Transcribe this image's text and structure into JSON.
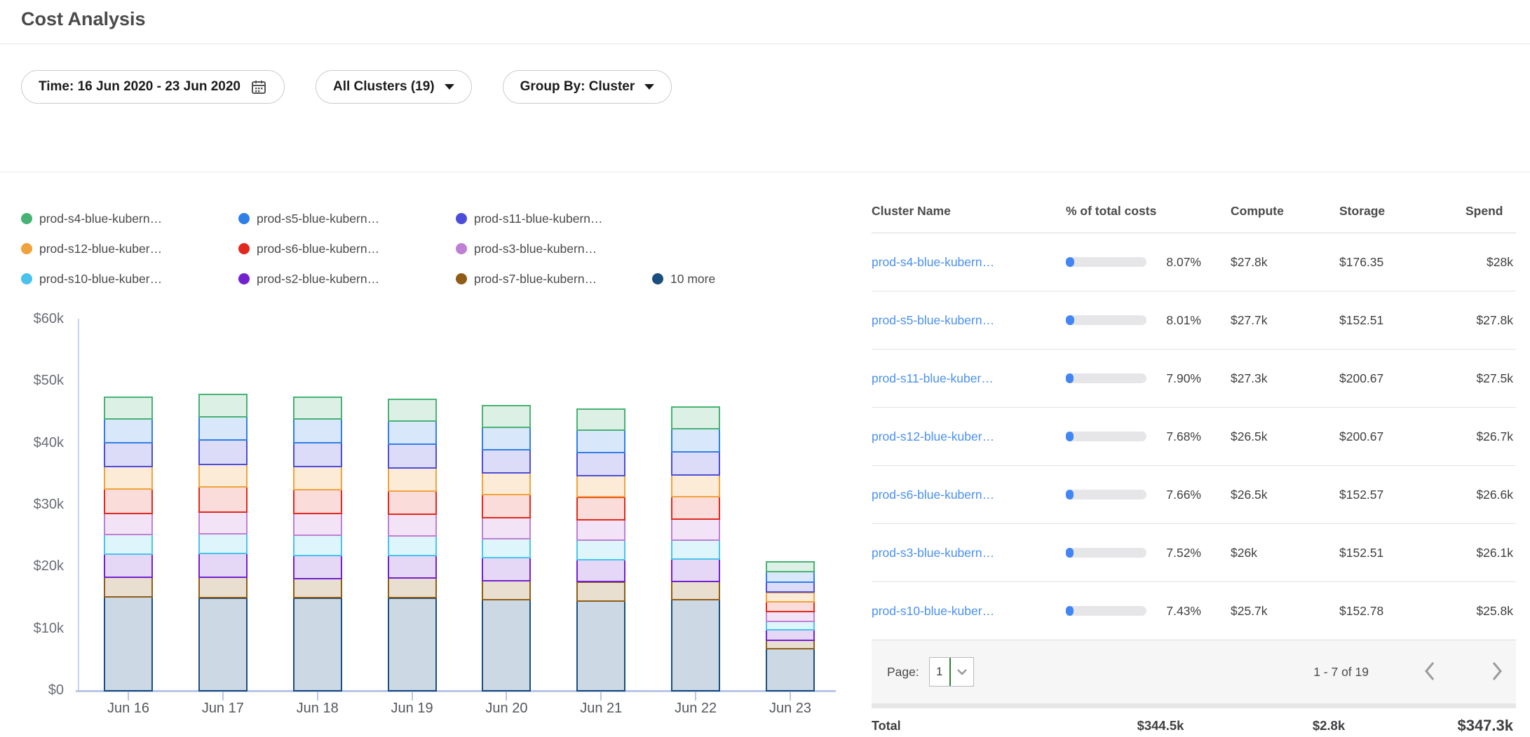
{
  "page": {
    "title": "Cost Analysis"
  },
  "toolbar": {
    "time_filter": "Time: 16 Jun 2020 - 23 Jun 2020",
    "clusters_filter": "All Clusters (19)",
    "group_by_filter": "Group By: Cluster"
  },
  "icons": {
    "time_pill": "calendar-icon",
    "dropdowns": "caret-down-icon",
    "page_select": "chevron-down-icon",
    "prev": "chevron-left-icon",
    "next": "chevron-right-icon"
  },
  "chart_data": {
    "type": "bar",
    "stacked": true,
    "title": "",
    "xlabel": "",
    "ylabel": "",
    "unit": "USD thousands",
    "ylim_k": [
      0,
      60
    ],
    "ytick_labels": [
      "$0",
      "$10k",
      "$20k",
      "$30k",
      "$40k",
      "$50k",
      "$60k"
    ],
    "x": [
      "Jun 16",
      "Jun 17",
      "Jun 18",
      "Jun 19",
      "Jun 20",
      "Jun 21",
      "Jun 22",
      "Jun 23"
    ],
    "grid": false,
    "legend_position": "top-left",
    "legend_rows": [
      [
        0,
        1,
        2
      ],
      [
        3,
        4,
        5
      ],
      [
        6,
        7,
        8,
        9
      ]
    ],
    "stack_order": "last-series-on-bottom",
    "series": [
      {
        "name": "prod-s4-blue-kubern…",
        "color": "#47b274",
        "fill": "#ddf0e5",
        "values_k": [
          3.5,
          3.6,
          3.5,
          3.5,
          3.5,
          3.4,
          3.5,
          1.5
        ]
      },
      {
        "name": "prod-s5-blue-kubern…",
        "color": "#2f7fe8",
        "fill": "#d9e7fb",
        "values_k": [
          3.8,
          3.8,
          3.8,
          3.8,
          3.7,
          3.6,
          3.7,
          1.8
        ]
      },
      {
        "name": "prod-s11-blue-kubern…",
        "color": "#4d4ddb",
        "fill": "#dcdcf8",
        "values_k": [
          3.9,
          3.9,
          3.9,
          3.8,
          3.7,
          3.7,
          3.7,
          1.6
        ]
      },
      {
        "name": "prod-s12-blue-kuber…",
        "color": "#f0a23c",
        "fill": "#fcecd7",
        "values_k": [
          3.6,
          3.7,
          3.7,
          3.7,
          3.5,
          3.5,
          3.5,
          1.5
        ]
      },
      {
        "name": "prod-s6-blue-kubern…",
        "color": "#e3291d",
        "fill": "#fadcda",
        "values_k": [
          3.9,
          4.0,
          3.9,
          3.8,
          3.7,
          3.7,
          3.7,
          1.6
        ]
      },
      {
        "name": "prod-s3-blue-kubern…",
        "color": "#bf7fd4",
        "fill": "#f2e3f7",
        "values_k": [
          3.5,
          3.5,
          3.5,
          3.5,
          3.4,
          3.3,
          3.4,
          1.6
        ]
      },
      {
        "name": "prod-s10-blue-kuber…",
        "color": "#49c3ed",
        "fill": "#dff5fc",
        "values_k": [
          3.1,
          3.2,
          3.2,
          3.1,
          3.1,
          3.1,
          3.0,
          1.3
        ]
      },
      {
        "name": "prod-s2-blue-kubern…",
        "color": "#7321cf",
        "fill": "#e5d8f6",
        "values_k": [
          3.8,
          3.9,
          3.8,
          3.7,
          3.7,
          3.6,
          3.6,
          1.7
        ]
      },
      {
        "name": "prod-s7-blue-kubern…",
        "color": "#8f5c17",
        "fill": "#e9dfd0",
        "values_k": [
          3.1,
          3.3,
          3.1,
          3.2,
          3.1,
          3.1,
          3.0,
          1.4
        ]
      },
      {
        "name": "10 more",
        "color": "#1a4e7e",
        "fill": "#ccd9e5",
        "values_k": [
          15.2,
          15.0,
          15.0,
          15.0,
          14.7,
          14.5,
          14.7,
          6.8
        ]
      }
    ]
  },
  "table": {
    "columns": [
      "Cluster Name",
      "% of total costs",
      "Compute",
      "Storage",
      "Spend"
    ],
    "rows": [
      {
        "name": "prod-s4-blue-kubern…",
        "pct": "8.07%",
        "pct_value": 8.07,
        "compute": "$27.8k",
        "storage": "$176.35",
        "spend": "$28k"
      },
      {
        "name": "prod-s5-blue-kubern…",
        "pct": "8.01%",
        "pct_value": 8.01,
        "compute": "$27.7k",
        "storage": "$152.51",
        "spend": "$27.8k"
      },
      {
        "name": "prod-s11-blue-kuber…",
        "pct": "7.90%",
        "pct_value": 7.9,
        "compute": "$27.3k",
        "storage": "$200.67",
        "spend": "$27.5k"
      },
      {
        "name": "prod-s12-blue-kuber…",
        "pct": "7.68%",
        "pct_value": 7.68,
        "compute": "$26.5k",
        "storage": "$200.67",
        "spend": "$26.7k"
      },
      {
        "name": "prod-s6-blue-kubern…",
        "pct": "7.66%",
        "pct_value": 7.66,
        "compute": "$26.5k",
        "storage": "$152.57",
        "spend": "$26.6k"
      },
      {
        "name": "prod-s3-blue-kubern…",
        "pct": "7.52%",
        "pct_value": 7.52,
        "compute": "$26k",
        "storage": "$152.51",
        "spend": "$26.1k"
      },
      {
        "name": "prod-s10-blue-kuber…",
        "pct": "7.43%",
        "pct_value": 7.43,
        "compute": "$25.7k",
        "storage": "$152.78",
        "spend": "$25.8k"
      }
    ],
    "pagination": {
      "label": "Page:",
      "current_page": "1",
      "range_text": "1 - 7 of 19"
    },
    "total": {
      "label": "Total",
      "compute": "$344.5k",
      "storage": "$2.8k",
      "spend": "$347.3k"
    }
  },
  "colors": {
    "link_blue": "#4a90f0",
    "progress_fill": "#4285f4",
    "progress_track": "#e6e6e9",
    "axis_line": "#b9c6e8",
    "select_divider_green": "#2f7d32"
  }
}
